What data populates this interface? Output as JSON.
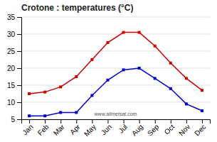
{
  "chart_data": {
    "type": "line",
    "title": "Crotone : temperatures (°C)",
    "categories": [
      "Jan",
      "Feb",
      "Mar",
      "Apr",
      "May",
      "Jun",
      "Jul",
      "Aug",
      "Sep",
      "Oct",
      "Nov",
      "Dec"
    ],
    "series": [
      {
        "color": "#cc0000",
        "marker": "square",
        "values": [
          12.5,
          13.0,
          14.5,
          17.5,
          22.5,
          27.5,
          30.5,
          30.5,
          26.5,
          21.5,
          17.0,
          13.5
        ]
      },
      {
        "color": "#0000cc",
        "marker": "square",
        "values": [
          6.0,
          6.0,
          7.0,
          7.0,
          12.0,
          16.5,
          19.5,
          20.0,
          17.0,
          14.0,
          9.5,
          7.5
        ]
      }
    ],
    "ylim": [
      5,
      35
    ],
    "yticks": [
      5,
      10,
      15,
      20,
      25,
      30,
      35
    ],
    "grid": true,
    "annotations": [
      "www.allmetsat.com"
    ]
  }
}
